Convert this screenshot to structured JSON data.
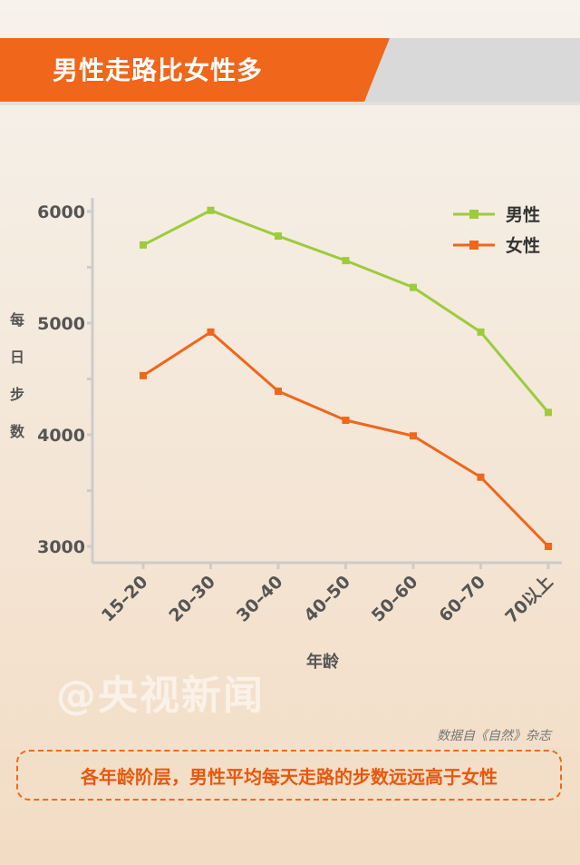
{
  "title": "男性走路比女性多",
  "colors": {
    "accent": "#f0661a",
    "male": "#9dcb3b",
    "female": "#f0661a",
    "gray": "#d6d6d6"
  },
  "chart_data": {
    "type": "line",
    "categories": [
      "15–20",
      "20–30",
      "30–40",
      "40–50",
      "50–60",
      "60–70",
      "70以上"
    ],
    "series": [
      {
        "name": "男性",
        "values": [
          5700,
          6010,
          5780,
          5560,
          5320,
          4920,
          4200
        ]
      },
      {
        "name": "女性",
        "values": [
          4530,
          4920,
          4390,
          4130,
          3990,
          3620,
          3000
        ]
      }
    ],
    "ylabel": "每日步数",
    "xlabel": "年龄",
    "yticks": [
      6000,
      5000,
      4000,
      3000
    ],
    "legend": "top-right",
    "grid": false
  },
  "watermark": "@央视新闻",
  "source": "数据自《自然》杂志",
  "summary": "各年龄阶层，男性平均每天走路的步数远远高于女性"
}
